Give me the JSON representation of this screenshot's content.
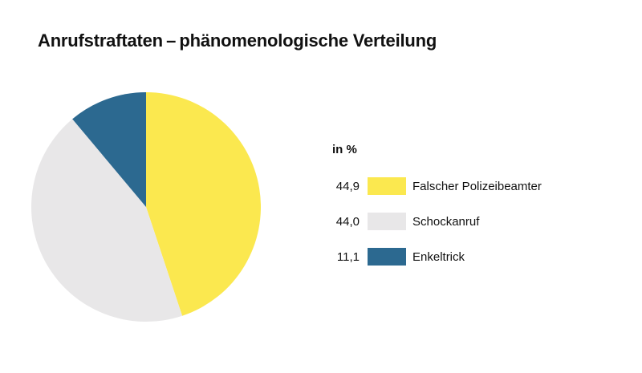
{
  "chart_data": {
    "type": "pie",
    "title": "Anrufstraftaten – phänomenologische Verteilung",
    "unit": "in %",
    "legend_position": "right",
    "slices": [
      {
        "label": "Falscher Polizeibeamter",
        "value": 44.9,
        "display": "44,9",
        "color": "#FBE84F"
      },
      {
        "label": "Schockanruf",
        "value": 44.0,
        "display": "44,0",
        "color": "#E8E7E8"
      },
      {
        "label": "Enkeltrick",
        "value": 11.1,
        "display": "11,1",
        "color": "#2C6990"
      }
    ]
  }
}
